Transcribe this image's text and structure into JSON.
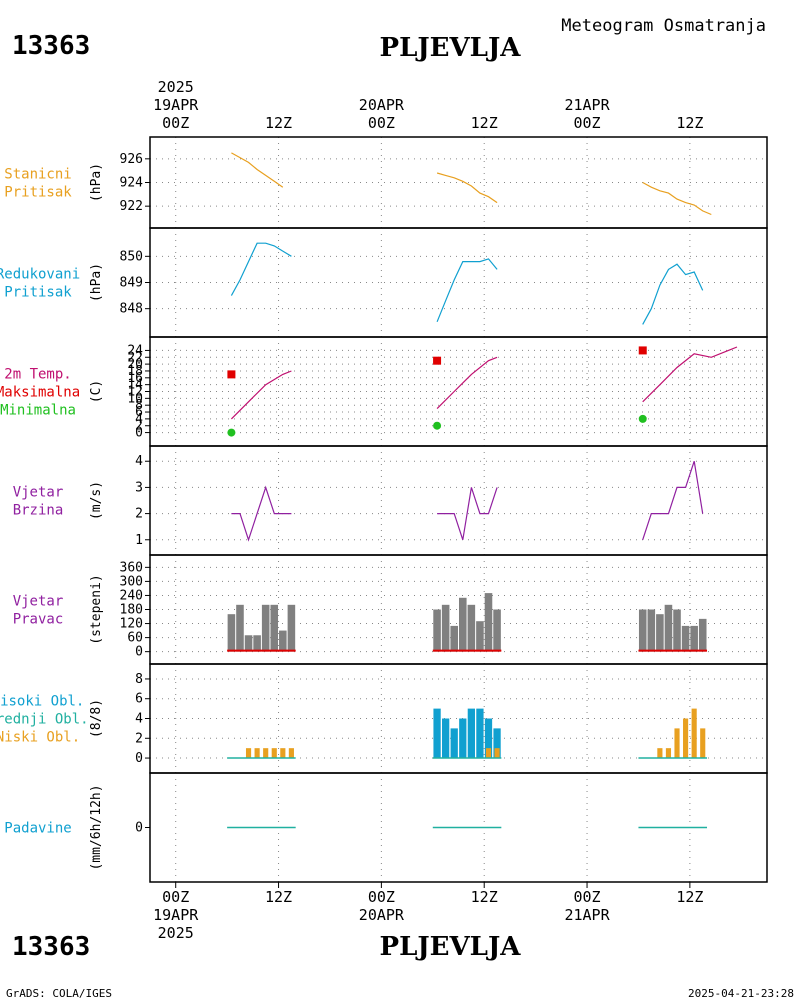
{
  "header": {
    "station_id": "13363",
    "station_name": "PLJEVLJA",
    "subtitle": "Meteogram Osmatranja"
  },
  "footer": {
    "credit": "GrADS: COLA/IGES",
    "timestamp": "2025-04-21-23:28"
  },
  "time_axis": {
    "year": "2025",
    "days": [
      {
        "date": "19APR",
        "label_00": "00Z",
        "label_12": "12Z"
      },
      {
        "date": "20APR",
        "label_00": "00Z",
        "label_12": "12Z"
      },
      {
        "date": "21APR",
        "label_00": "00Z",
        "label_12": "12Z"
      }
    ]
  },
  "chart_data": [
    {
      "id": "pressure",
      "type": "line",
      "labels": [
        {
          "text": "Stanicni",
          "color": "#e8a020"
        },
        {
          "text": "Pritisak",
          "color": "#e8a020"
        }
      ],
      "ylabel": "(hPa)",
      "ylim": [
        921,
        927
      ],
      "yticks": [
        922,
        924,
        926
      ],
      "grid": true,
      "series": [
        {
          "color": "#e8a020",
          "segments": [
            [
              [
                6.5,
                926.5
              ],
              [
                7.5,
                926.1
              ],
              [
                8.5,
                925.7
              ],
              [
                9.5,
                925.1
              ],
              [
                10.5,
                924.6
              ],
              [
                11.5,
                924.1
              ],
              [
                12.5,
                923.6
              ]
            ],
            [
              [
                30.5,
                924.8
              ],
              [
                31.5,
                924.6
              ],
              [
                32.5,
                924.4
              ],
              [
                33.5,
                924.1
              ],
              [
                34.5,
                923.7
              ],
              [
                35.5,
                923.1
              ],
              [
                36.5,
                922.8
              ],
              [
                37.5,
                922.3
              ]
            ],
            [
              [
                54.5,
                924.0
              ],
              [
                55.5,
                923.6
              ],
              [
                56.5,
                923.3
              ],
              [
                57.5,
                923.1
              ],
              [
                58.5,
                922.6
              ],
              [
                59.5,
                922.3
              ],
              [
                60.5,
                922.1
              ],
              [
                61.5,
                921.6
              ],
              [
                62.5,
                921.3
              ]
            ]
          ]
        }
      ]
    },
    {
      "id": "reduced_pressure",
      "type": "line",
      "labels": [
        {
          "text": "Redukovani",
          "color": "#10a0d0"
        },
        {
          "text": "Pritisak",
          "color": "#10a0d0"
        }
      ],
      "ylabel": "(hPa)",
      "ylim": [
        847.3,
        850.7
      ],
      "yticks": [
        848,
        849,
        850
      ],
      "grid": true,
      "series": [
        {
          "color": "#10a0d0",
          "segments": [
            [
              [
                6.5,
                848.5
              ],
              [
                7.5,
                849.1
              ],
              [
                8.5,
                849.8
              ],
              [
                9.5,
                850.5
              ],
              [
                10.5,
                850.5
              ],
              [
                11.5,
                850.4
              ],
              [
                12.5,
                850.2
              ],
              [
                13.5,
                850.0
              ]
            ],
            [
              [
                30.5,
                847.5
              ],
              [
                31.5,
                848.3
              ],
              [
                32.5,
                849.1
              ],
              [
                33.5,
                849.8
              ],
              [
                34.5,
                849.8
              ],
              [
                35.5,
                849.8
              ],
              [
                36.5,
                849.9
              ],
              [
                37.5,
                849.5
              ]
            ],
            [
              [
                54.5,
                847.4
              ],
              [
                55.5,
                848.0
              ],
              [
                56.5,
                848.9
              ],
              [
                57.5,
                849.5
              ],
              [
                58.5,
                849.7
              ],
              [
                59.5,
                849.3
              ],
              [
                60.5,
                849.4
              ],
              [
                61.5,
                848.7
              ]
            ]
          ]
        }
      ]
    },
    {
      "id": "temperature",
      "type": "line",
      "labels": [
        {
          "text": "2m Temp.",
          "color": "#c01070"
        },
        {
          "text": "Maksimalna",
          "color": "#e00000"
        },
        {
          "text": "Minimalna",
          "color": "#20c020"
        }
      ],
      "ylabel": "(C)",
      "ylim": [
        -1,
        25
      ],
      "yticks": [
        0,
        2,
        4,
        6,
        8,
        10,
        12,
        14,
        16,
        18,
        20,
        22,
        24
      ],
      "grid": true,
      "series": [
        {
          "color": "#c01070",
          "segments": [
            [
              [
                6.5,
                4
              ],
              [
                8.5,
                9
              ],
              [
                10.5,
                14
              ],
              [
                12.5,
                17
              ],
              [
                13.5,
                18
              ]
            ],
            [
              [
                30.5,
                7
              ],
              [
                32.5,
                12
              ],
              [
                34.5,
                17
              ],
              [
                36.5,
                21
              ],
              [
                37.5,
                22
              ]
            ],
            [
              [
                54.5,
                9
              ],
              [
                56.5,
                14
              ],
              [
                58.5,
                19
              ],
              [
                60.5,
                23
              ],
              [
                62.5,
                22
              ],
              [
                64.5,
                24
              ],
              [
                65.5,
                25
              ]
            ]
          ]
        }
      ],
      "markers": [
        {
          "kind": "square",
          "color": "#e00000",
          "points": [
            [
              6.5,
              17
            ],
            [
              30.5,
              21
            ],
            [
              54.5,
              24
            ]
          ]
        },
        {
          "kind": "circle",
          "color": "#20c020",
          "points": [
            [
              6.5,
              0
            ],
            [
              30.5,
              2
            ],
            [
              54.5,
              4
            ]
          ]
        }
      ]
    },
    {
      "id": "wind_speed",
      "type": "line",
      "labels": [
        {
          "text": "Vjetar",
          "color": "#9020a0"
        },
        {
          "text": "Brzina",
          "color": "#9020a0"
        }
      ],
      "ylabel": "(m/s)",
      "ylim": [
        0.8,
        4.2
      ],
      "yticks": [
        1,
        2,
        3,
        4
      ],
      "grid": true,
      "series": [
        {
          "color": "#9020a0",
          "segments": [
            [
              [
                6.5,
                2
              ],
              [
                7.5,
                2
              ],
              [
                8.5,
                1
              ],
              [
                9.5,
                2
              ],
              [
                10.5,
                3
              ],
              [
                11.5,
                2
              ],
              [
                12.5,
                2
              ],
              [
                13.5,
                2
              ]
            ],
            [
              [
                30.5,
                2
              ],
              [
                31.5,
                2
              ],
              [
                32.5,
                2
              ],
              [
                33.5,
                1
              ],
              [
                34.5,
                3
              ],
              [
                35.5,
                2
              ],
              [
                36.5,
                2
              ],
              [
                37.5,
                3
              ]
            ],
            [
              [
                54.5,
                1
              ],
              [
                55.5,
                2
              ],
              [
                56.5,
                2
              ],
              [
                57.5,
                2
              ],
              [
                58.5,
                3
              ],
              [
                59.5,
                3
              ],
              [
                60.5,
                4
              ],
              [
                61.5,
                2
              ]
            ]
          ]
        }
      ]
    },
    {
      "id": "wind_direction",
      "type": "bar",
      "labels": [
        {
          "text": "Vjetar",
          "color": "#9020a0"
        },
        {
          "text": "Pravac",
          "color": "#9020a0"
        }
      ],
      "ylabel": "(stepeni)",
      "ylim": [
        -10,
        370
      ],
      "yticks": [
        0,
        60,
        120,
        180,
        240,
        300,
        360
      ],
      "grid": true,
      "bar_color": "#808080",
      "baseline_color": "#e00000",
      "bars": [
        [
          6.5,
          160
        ],
        [
          7.5,
          200
        ],
        [
          8.5,
          70
        ],
        [
          9.5,
          70
        ],
        [
          10.5,
          200
        ],
        [
          11.5,
          200
        ],
        [
          12.5,
          90
        ],
        [
          13.5,
          200
        ],
        [
          30.5,
          180
        ],
        [
          31.5,
          200
        ],
        [
          32.5,
          110
        ],
        [
          33.5,
          230
        ],
        [
          34.5,
          200
        ],
        [
          35.5,
          130
        ],
        [
          36.5,
          250
        ],
        [
          37.5,
          180
        ],
        [
          54.5,
          180
        ],
        [
          55.5,
          180
        ],
        [
          56.5,
          160
        ],
        [
          57.5,
          200
        ],
        [
          58.5,
          180
        ],
        [
          59.5,
          110
        ],
        [
          60.5,
          110
        ],
        [
          61.5,
          140
        ]
      ]
    },
    {
      "id": "clouds",
      "type": "bar",
      "labels": [
        {
          "text": "Visoki Obl.",
          "color": "#10a0d0"
        },
        {
          "text": "Srednji Obl.",
          "color": "#20b0a0"
        },
        {
          "text": "Niski Obl.",
          "color": "#e8a020"
        }
      ],
      "ylabel": "(8/8)",
      "ylim": [
        -0.5,
        8.5
      ],
      "yticks": [
        0,
        2,
        4,
        6,
        8
      ],
      "grid": true,
      "series": [
        {
          "name": "high",
          "color": "#10a0d0",
          "bars": [
            [
              30.5,
              5
            ],
            [
              31.5,
              4
            ],
            [
              32.5,
              3
            ],
            [
              33.5,
              4
            ],
            [
              34.5,
              5
            ],
            [
              35.5,
              5
            ],
            [
              36.5,
              4
            ],
            [
              37.5,
              3
            ]
          ]
        },
        {
          "name": "low",
          "color": "#e8a020",
          "bars": [
            [
              8.5,
              1
            ],
            [
              9.5,
              1
            ],
            [
              10.5,
              1
            ],
            [
              11.5,
              1
            ],
            [
              12.5,
              1
            ],
            [
              13.5,
              1
            ],
            [
              36.5,
              1
            ],
            [
              37.5,
              1
            ],
            [
              56.5,
              1
            ],
            [
              57.5,
              1
            ],
            [
              58.5,
              3
            ],
            [
              59.5,
              4
            ],
            [
              60.5,
              5
            ],
            [
              61.5,
              3
            ]
          ]
        }
      ],
      "baseline_color": "#20b0a0",
      "baseline_ranges": [
        [
          6,
          14
        ],
        [
          30,
          38
        ],
        [
          54,
          62
        ]
      ]
    },
    {
      "id": "precipitation",
      "type": "bar",
      "labels": [
        {
          "text": "Padavine",
          "color": "#10a0d0"
        }
      ],
      "ylabel": "(mm/6h/12h)",
      "ylim": [
        -1,
        1
      ],
      "yticks": [
        0
      ],
      "grid": false,
      "baseline_color": "#20b0a0",
      "baseline_ranges": [
        [
          6,
          14
        ],
        [
          30,
          38
        ],
        [
          54,
          62
        ]
      ]
    }
  ]
}
